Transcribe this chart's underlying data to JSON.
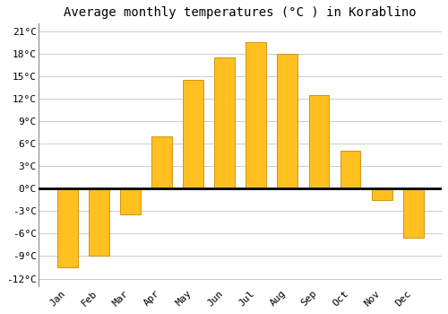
{
  "title": "Average monthly temperatures (°C ) in Korablino",
  "months": [
    "Jan",
    "Feb",
    "Mar",
    "Apr",
    "May",
    "Jun",
    "Jul",
    "Aug",
    "Sep",
    "Oct",
    "Nov",
    "Dec"
  ],
  "values": [
    -10.5,
    -9.0,
    -3.5,
    7.0,
    14.5,
    17.5,
    19.5,
    18.0,
    12.5,
    5.0,
    -1.5,
    -6.5
  ],
  "bar_color": "#FFC020",
  "bar_edge_color": "#CC8800",
  "background_color": "#ffffff",
  "plot_bg_color": "#ffffff",
  "grid_color": "#cccccc",
  "ylim": [
    -13,
    22
  ],
  "yticks": [
    -12,
    -9,
    -6,
    -3,
    0,
    3,
    6,
    9,
    12,
    15,
    18,
    21
  ],
  "ytick_labels": [
    "-12°C",
    "-9°C",
    "-6°C",
    "-3°C",
    "0°C",
    "3°C",
    "6°C",
    "9°C",
    "12°C",
    "15°C",
    "18°C",
    "21°C"
  ],
  "title_fontsize": 10,
  "tick_fontsize": 8,
  "font_family": "monospace",
  "bar_width": 0.65
}
